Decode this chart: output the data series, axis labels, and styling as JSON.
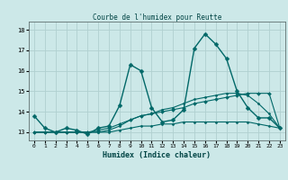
{
  "title": "Courbe de l'humidex pour Reutte",
  "xlabel": "Humidex (Indice chaleur)",
  "bg_color": "#cce8e8",
  "grid_color": "#b0d0d0",
  "line_color": "#006868",
  "xlim": [
    -0.5,
    23.5
  ],
  "ylim": [
    12.6,
    18.4
  ],
  "yticks": [
    13,
    14,
    15,
    16,
    17,
    18
  ],
  "xticks": [
    0,
    1,
    2,
    3,
    4,
    5,
    6,
    7,
    8,
    9,
    10,
    11,
    12,
    13,
    14,
    15,
    16,
    17,
    18,
    19,
    20,
    21,
    22,
    23
  ],
  "series": [
    {
      "x": [
        0,
        1,
        2,
        3,
        4,
        5,
        6,
        7,
        8,
        9,
        10,
        11,
        12,
        13,
        14,
        15,
        16,
        17,
        18,
        19,
        20,
        21,
        22,
        23
      ],
      "y": [
        13.8,
        13.2,
        13.0,
        13.2,
        13.1,
        12.9,
        13.2,
        13.3,
        14.3,
        16.3,
        16.0,
        14.2,
        13.5,
        13.6,
        14.1,
        17.1,
        17.8,
        17.3,
        16.6,
        15.0,
        14.2,
        13.7,
        13.7,
        13.2
      ],
      "lw": 1.0,
      "ms": 2.5
    },
    {
      "x": [
        0,
        1,
        2,
        3,
        4,
        5,
        6,
        7,
        8,
        9,
        10,
        11,
        12,
        13,
        14,
        15,
        16,
        17,
        18,
        19,
        20,
        21,
        22,
        23
      ],
      "y": [
        13.0,
        13.0,
        13.0,
        13.0,
        13.0,
        13.0,
        13.1,
        13.2,
        13.4,
        13.6,
        13.8,
        13.9,
        14.0,
        14.1,
        14.2,
        14.4,
        14.5,
        14.6,
        14.7,
        14.8,
        14.9,
        14.9,
        14.9,
        13.2
      ],
      "lw": 0.8,
      "ms": 2.0
    },
    {
      "x": [
        0,
        1,
        2,
        3,
        4,
        5,
        6,
        7,
        8,
        9,
        10,
        11,
        12,
        13,
        14,
        15,
        16,
        17,
        18,
        19,
        20,
        21,
        22,
        23
      ],
      "y": [
        13.0,
        13.0,
        13.0,
        13.0,
        13.0,
        13.0,
        13.0,
        13.0,
        13.1,
        13.2,
        13.3,
        13.3,
        13.4,
        13.4,
        13.5,
        13.5,
        13.5,
        13.5,
        13.5,
        13.5,
        13.5,
        13.4,
        13.3,
        13.2
      ],
      "lw": 0.8,
      "ms": 1.5
    },
    {
      "x": [
        0,
        1,
        2,
        3,
        4,
        5,
        6,
        7,
        8,
        9,
        10,
        11,
        12,
        13,
        14,
        15,
        16,
        17,
        18,
        19,
        20,
        21,
        22,
        23
      ],
      "y": [
        13.0,
        13.0,
        13.0,
        13.0,
        13.0,
        13.0,
        13.0,
        13.1,
        13.3,
        13.6,
        13.8,
        13.9,
        14.1,
        14.2,
        14.4,
        14.6,
        14.7,
        14.8,
        14.9,
        14.9,
        14.8,
        14.4,
        13.9,
        13.2
      ],
      "lw": 0.8,
      "ms": 1.5
    }
  ]
}
